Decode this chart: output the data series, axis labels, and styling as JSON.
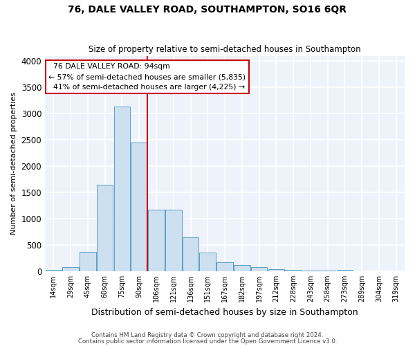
{
  "title1": "76, DALE VALLEY ROAD, SOUTHAMPTON, SO16 6QR",
  "title2": "Size of property relative to semi-detached houses in Southampton",
  "xlabel": "Distribution of semi-detached houses by size in Southampton",
  "ylabel": "Number of semi-detached properties",
  "footnote1": "Contains HM Land Registry data © Crown copyright and database right 2024.",
  "footnote2": "Contains public sector information licensed under the Open Government Licence v3.0.",
  "property_label": "76 DALE VALLEY ROAD: 94sqm",
  "pct_smaller": 57,
  "pct_larger": 41,
  "n_smaller": 5835,
  "n_larger": 4225,
  "categories": [
    "14sqm",
    "29sqm",
    "45sqm",
    "60sqm",
    "75sqm",
    "90sqm",
    "106sqm",
    "121sqm",
    "136sqm",
    "151sqm",
    "167sqm",
    "182sqm",
    "197sqm",
    "212sqm",
    "228sqm",
    "243sqm",
    "258sqm",
    "273sqm",
    "289sqm",
    "304sqm",
    "319sqm"
  ],
  "values": [
    20,
    80,
    370,
    1650,
    3130,
    2450,
    1170,
    1170,
    640,
    350,
    175,
    115,
    75,
    40,
    25,
    15,
    8,
    25,
    5,
    0,
    3
  ],
  "bar_color": "#cce0f0",
  "bar_edge_color": "#5a9fc4",
  "background_color": "#eef3fb",
  "grid_color": "#ffffff",
  "annotation_box_facecolor": "#ffffff",
  "annotation_border_color": "#cc0000",
  "red_line_color": "#cc0000",
  "ylim": [
    0,
    4100
  ],
  "yticks": [
    0,
    500,
    1000,
    1500,
    2000,
    2500,
    3000,
    3500,
    4000
  ],
  "fig_facecolor": "#ffffff"
}
